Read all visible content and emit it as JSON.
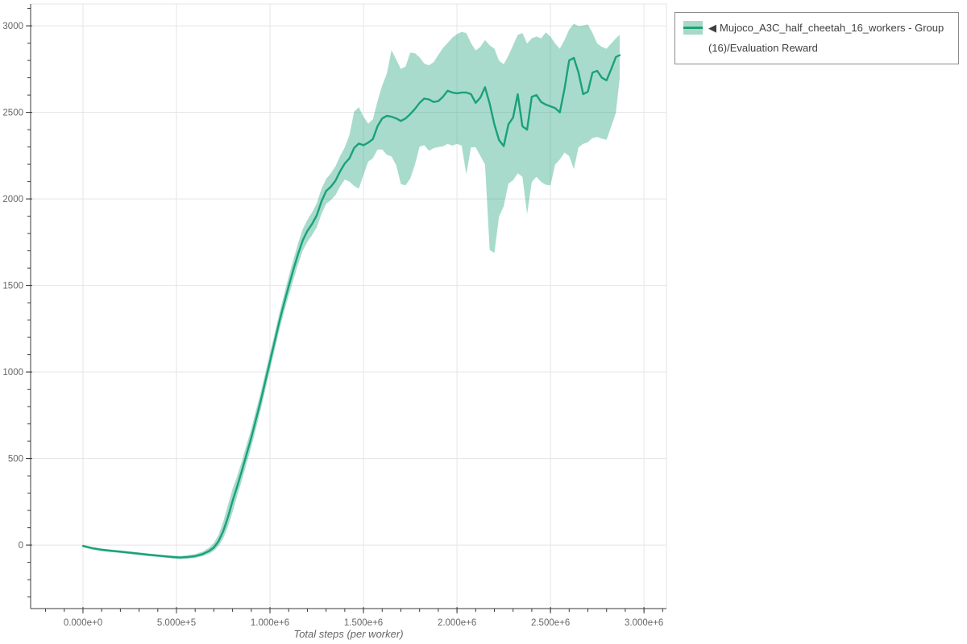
{
  "colors": {
    "line": "#1aa179",
    "band_fill": "#1aa179",
    "grid": "#e5e5e5",
    "axis": "#3b3b3b",
    "tick_label": "#666666",
    "legend_border": "#8c8c8c",
    "legend_text": "#3f3f3f",
    "background": "#ffffff"
  },
  "legend": {
    "items": [
      {
        "marker": "◀",
        "label": "Mujoco_A3C_half_cheetah_16_workers - Group(16)/Evaluation Reward",
        "line_color": "#1aa179",
        "band_color": "#a9d9c6"
      }
    ]
  },
  "chart_data": {
    "type": "line",
    "title": "",
    "xlabel": "Total steps (per worker)",
    "ylabel": "",
    "grid": true,
    "legend_position": "top-right-outside",
    "xlim": [
      -280000,
      3120000
    ],
    "ylim": [
      -367,
      3126
    ],
    "x_minor_step": 100000,
    "y_minor_step": 100,
    "x_ticks": [
      {
        "value": 0,
        "label": "0.000e+0"
      },
      {
        "value": 500000,
        "label": "5.000e+5"
      },
      {
        "value": 1000000,
        "label": "1.000e+6"
      },
      {
        "value": 1500000,
        "label": "1.500e+6"
      },
      {
        "value": 2000000,
        "label": "2.000e+6"
      },
      {
        "value": 2500000,
        "label": "2.500e+6"
      },
      {
        "value": 3000000,
        "label": "3.000e+6"
      }
    ],
    "y_ticks": [
      {
        "value": 0,
        "label": "0"
      },
      {
        "value": 500,
        "label": "500"
      },
      {
        "value": 1000,
        "label": "1000"
      },
      {
        "value": 1500,
        "label": "1500"
      },
      {
        "value": 2000,
        "label": "2000"
      },
      {
        "value": 2500,
        "label": "2500"
      },
      {
        "value": 3000,
        "label": "3000"
      }
    ],
    "series": [
      {
        "name": "Mujoco_A3C_half_cheetah_16_workers - Group(16)/Evaluation Reward",
        "color": "#1aa179",
        "band_alpha": 0.38,
        "x": [
          0,
          50000,
          100000,
          150000,
          200000,
          250000,
          300000,
          350000,
          400000,
          450000,
          480000,
          520000,
          560000,
          600000,
          640000,
          675000,
          700000,
          725000,
          750000,
          775000,
          800000,
          825000,
          850000,
          875000,
          900000,
          925000,
          950000,
          975000,
          1000000,
          1025000,
          1050000,
          1075000,
          1100000,
          1125000,
          1150000,
          1175000,
          1200000,
          1225000,
          1250000,
          1275000,
          1300000,
          1325000,
          1350000,
          1375000,
          1400000,
          1425000,
          1450000,
          1475000,
          1500000,
          1525000,
          1550000,
          1575000,
          1600000,
          1625000,
          1650000,
          1675000,
          1700000,
          1725000,
          1750000,
          1775000,
          1800000,
          1825000,
          1850000,
          1875000,
          1900000,
          1925000,
          1950000,
          1975000,
          2000000,
          2025000,
          2050000,
          2075000,
          2100000,
          2125000,
          2150000,
          2175000,
          2200000,
          2225000,
          2250000,
          2275000,
          2300000,
          2325000,
          2350000,
          2375000,
          2400000,
          2425000,
          2450000,
          2475000,
          2500000,
          2525000,
          2550000,
          2575000,
          2600000,
          2625000,
          2650000,
          2675000,
          2700000,
          2725000,
          2750000,
          2775000,
          2800000,
          2825000,
          2850000,
          2870000
        ],
        "mean": [
          -5,
          -18,
          -27,
          -33,
          -38,
          -44,
          -50,
          -56,
          -61,
          -66,
          -69,
          -72,
          -69,
          -64,
          -52,
          -34,
          -14,
          22,
          80,
          160,
          255,
          340,
          430,
          525,
          620,
          725,
          830,
          945,
          1060,
          1175,
          1290,
          1395,
          1495,
          1590,
          1680,
          1760,
          1815,
          1855,
          1905,
          1985,
          2045,
          2070,
          2105,
          2160,
          2205,
          2235,
          2295,
          2320,
          2310,
          2325,
          2345,
          2420,
          2465,
          2480,
          2475,
          2465,
          2450,
          2465,
          2490,
          2520,
          2555,
          2580,
          2575,
          2560,
          2565,
          2590,
          2625,
          2615,
          2610,
          2615,
          2615,
          2605,
          2555,
          2585,
          2645,
          2550,
          2430,
          2340,
          2305,
          2430,
          2470,
          2605,
          2420,
          2400,
          2590,
          2600,
          2560,
          2545,
          2535,
          2525,
          2500,
          2635,
          2800,
          2815,
          2730,
          2605,
          2620,
          2730,
          2740,
          2700,
          2685,
          2750,
          2820,
          2830
        ],
        "band_low": [
          -12,
          -26,
          -35,
          -41,
          -46,
          -52,
          -58,
          -64,
          -69,
          -74,
          -78,
          -81,
          -79,
          -74,
          -64,
          -50,
          -34,
          -6,
          38,
          105,
          190,
          285,
          375,
          470,
          565,
          672,
          780,
          895,
          1012,
          1128,
          1242,
          1345,
          1440,
          1532,
          1620,
          1700,
          1752,
          1790,
          1836,
          1912,
          1972,
          1992,
          2022,
          2072,
          2112,
          2100,
          2075,
          2060,
          2140,
          2215,
          2235,
          2285,
          2285,
          2255,
          2245,
          2195,
          2085,
          2078,
          2118,
          2198,
          2302,
          2310,
          2278,
          2293,
          2300,
          2304,
          2318,
          2308,
          2318,
          2308,
          2142,
          2298,
          2298,
          2248,
          2198,
          1705,
          1688,
          1898,
          1958,
          2088,
          2108,
          2148,
          2128,
          1912,
          2098,
          2128,
          2098,
          2082,
          2078,
          2198,
          2228,
          2268,
          2248,
          2172,
          2298,
          2318,
          2328,
          2352,
          2358,
          2348,
          2342,
          2418,
          2498,
          2698
        ],
        "band_high": [
          2,
          -11,
          -20,
          -26,
          -31,
          -37,
          -43,
          -49,
          -54,
          -59,
          -61,
          -63,
          -58,
          -52,
          -38,
          -15,
          12,
          58,
          135,
          230,
          325,
          400,
          485,
          580,
          670,
          778,
          880,
          995,
          1108,
          1222,
          1338,
          1445,
          1550,
          1648,
          1742,
          1825,
          1878,
          1922,
          1975,
          2058,
          2115,
          2148,
          2188,
          2248,
          2298,
          2370,
          2505,
          2530,
          2475,
          2435,
          2460,
          2565,
          2655,
          2725,
          2860,
          2805,
          2750,
          2765,
          2845,
          2842,
          2818,
          2782,
          2772,
          2790,
          2832,
          2872,
          2902,
          2932,
          2952,
          2965,
          2958,
          2900,
          2858,
          2878,
          2918,
          2888,
          2868,
          2798,
          2778,
          2828,
          2888,
          2948,
          2958,
          2898,
          2928,
          2938,
          2928,
          2962,
          2938,
          2898,
          2868,
          2918,
          2978,
          3012,
          2998,
          3002,
          3008,
          2958,
          2898,
          2878,
          2868,
          2898,
          2928,
          2948
        ]
      }
    ]
  }
}
